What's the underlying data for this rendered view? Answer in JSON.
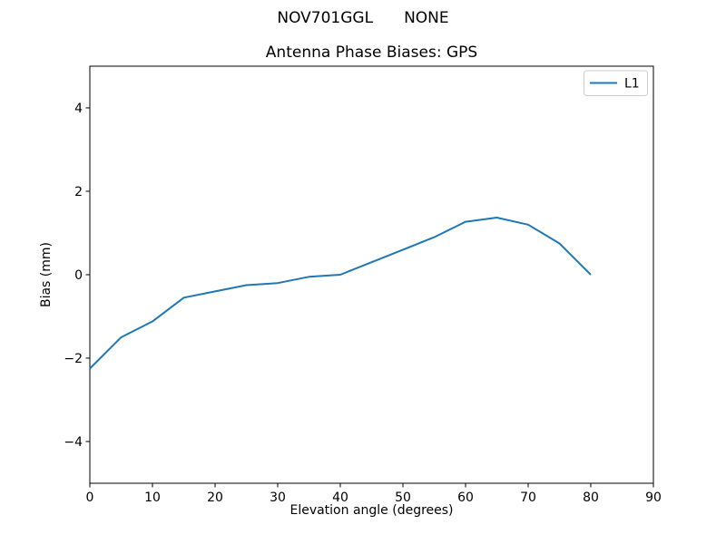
{
  "figure": {
    "suptitle_left": "NOV701GGL",
    "suptitle_right": "NONE"
  },
  "colors": {
    "line": "#1f77b4",
    "axes": "#000000",
    "text": "#000000",
    "legend_border": "#cccccc",
    "background": "#ffffff"
  },
  "chart_data": {
    "type": "line",
    "title": "Antenna Phase Biases: GPS",
    "xlabel": "Elevation angle (degrees)",
    "ylabel": "Bias (mm)",
    "xlim": [
      0,
      90
    ],
    "ylim": [
      -5,
      5
    ],
    "grid": false,
    "xticks": {
      "values": [
        0,
        10,
        20,
        30,
        40,
        50,
        60,
        70,
        80,
        90
      ],
      "labels": [
        "0",
        "10",
        "20",
        "30",
        "40",
        "50",
        "60",
        "70",
        "80",
        "90"
      ]
    },
    "yticks": {
      "values": [
        -4,
        -2,
        0,
        2,
        4
      ],
      "labels": [
        "−4",
        "−2",
        "0",
        "2",
        "4"
      ]
    },
    "legend": {
      "position": "upper-right",
      "entries": [
        {
          "label": "L1",
          "color": "#1f77b4"
        }
      ]
    },
    "series": [
      {
        "name": "L1",
        "color": "#1f77b4",
        "x": [
          0,
          5,
          10,
          15,
          20,
          25,
          30,
          35,
          40,
          45,
          50,
          55,
          60,
          65,
          70,
          75,
          80
        ],
        "y": [
          -2.25,
          -1.5,
          -1.12,
          -0.55,
          -0.4,
          -0.25,
          -0.2,
          -0.05,
          0.0,
          0.3,
          0.6,
          0.9,
          1.27,
          1.37,
          1.2,
          0.75,
          0.0
        ]
      }
    ]
  }
}
